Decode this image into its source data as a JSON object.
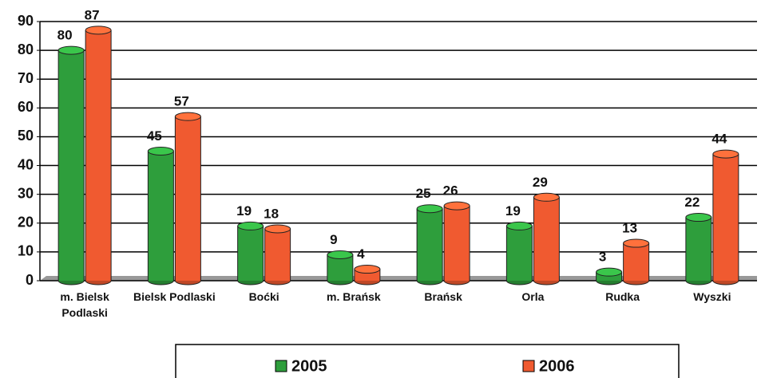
{
  "chart_data": {
    "type": "bar",
    "categories": [
      "m. Bielsk Podlaski",
      "Bielsk Podlaski",
      "Boćki",
      "m. Brańsk",
      "Brańsk",
      "Orla",
      "Rudka",
      "Wyszki"
    ],
    "series": [
      {
        "name": "2005",
        "color": "#2e9e3c",
        "values": [
          80,
          45,
          19,
          9,
          25,
          19,
          3,
          22
        ]
      },
      {
        "name": "2006",
        "color": "#f05a30",
        "values": [
          87,
          57,
          18,
          4,
          26,
          29,
          13,
          44
        ]
      }
    ],
    "ylim": [
      0,
      90
    ],
    "yticks": [
      0,
      10,
      20,
      30,
      40,
      50,
      60,
      70,
      80,
      90
    ],
    "grid": true,
    "legend": "bottom"
  }
}
